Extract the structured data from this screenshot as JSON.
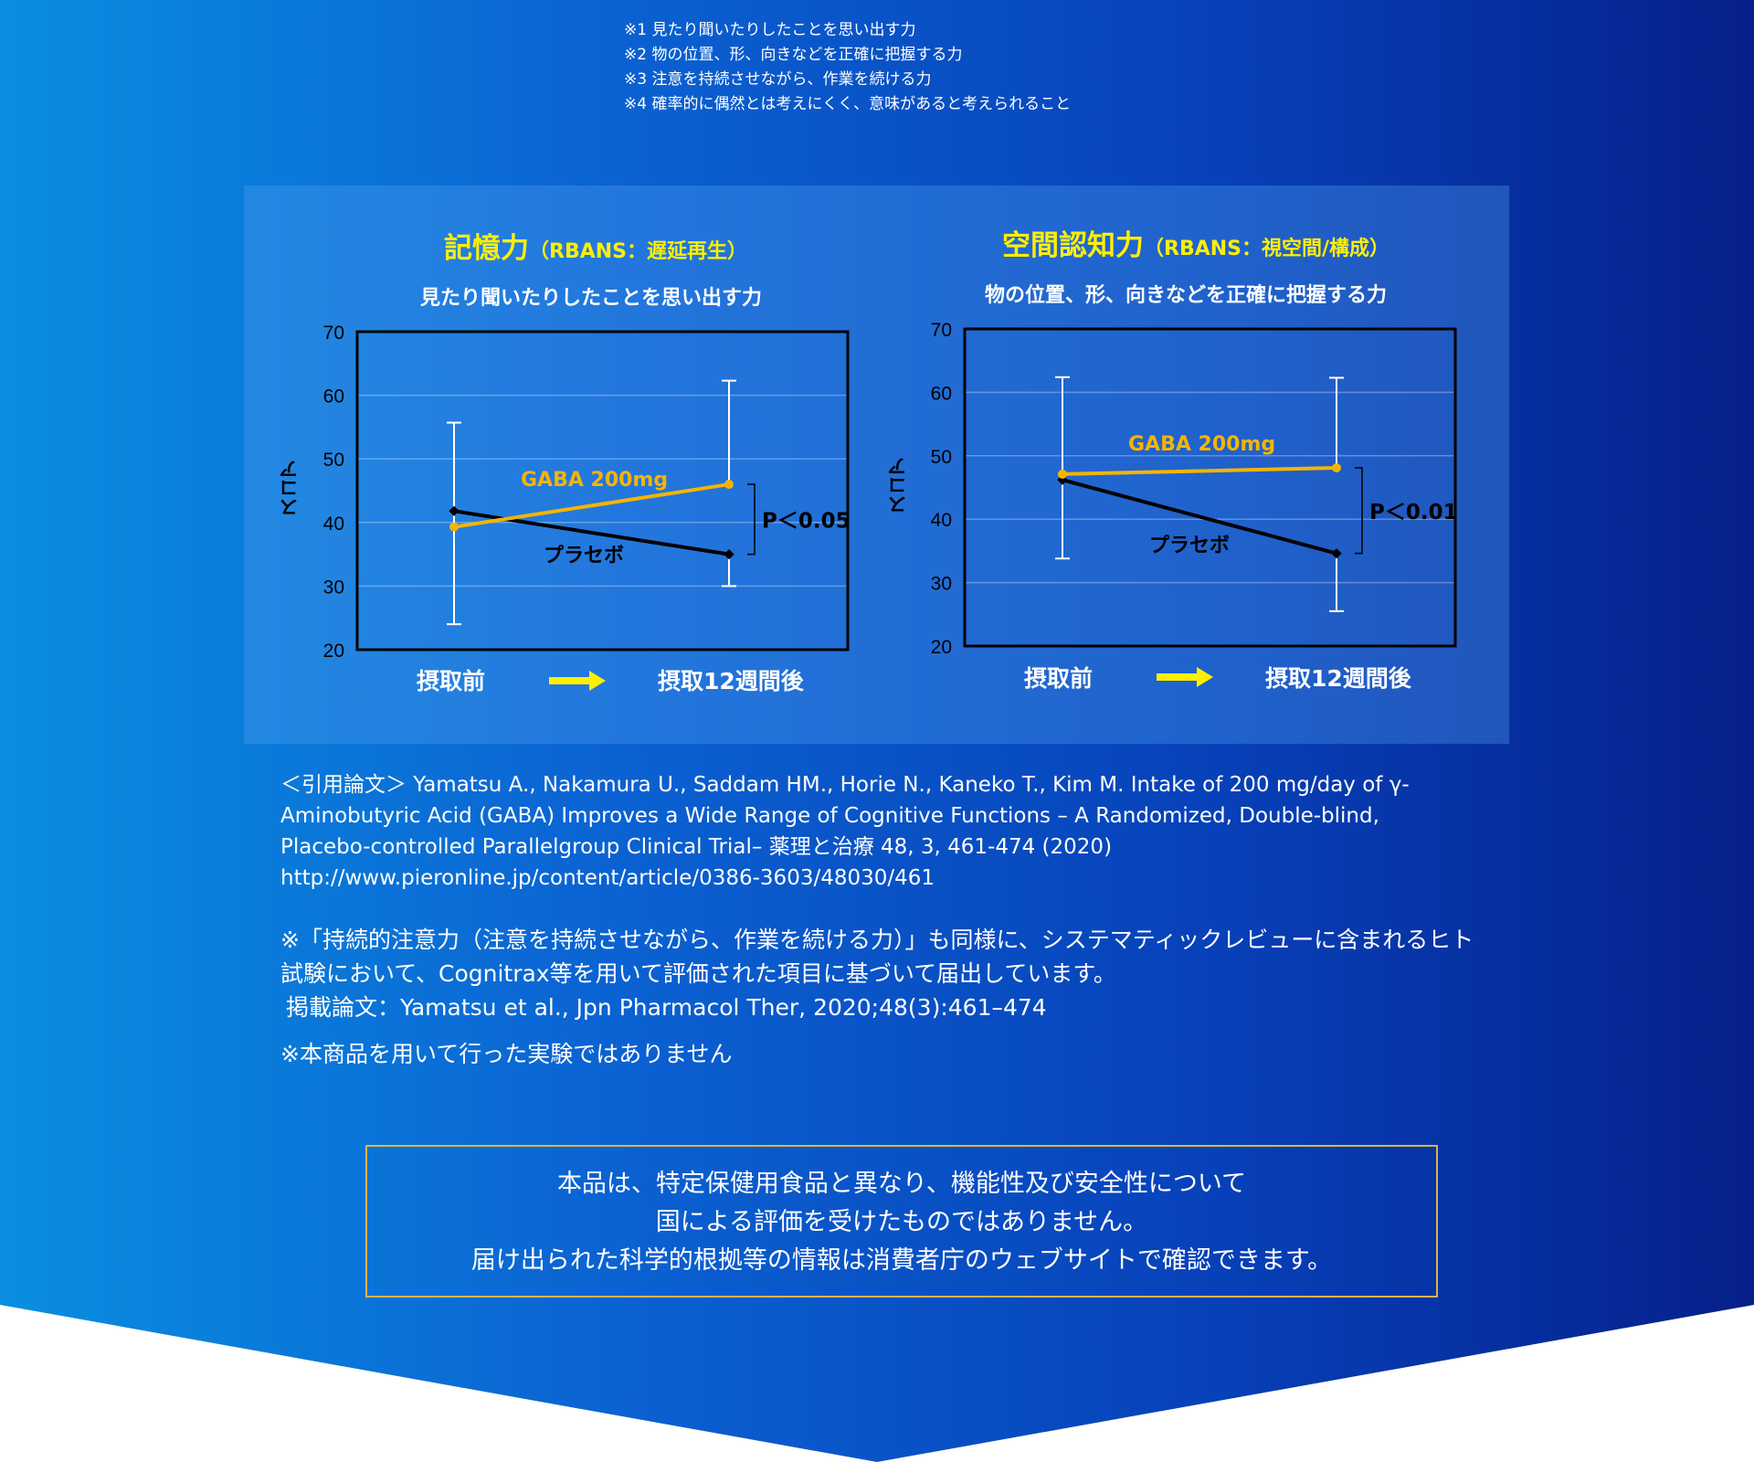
{
  "notes": [
    "※1 見たり聞いたりしたことを思い出す力",
    "※2 物の位置、形、向きなどを正確に把握する力",
    "※3 注意を持続させながら、作業を続ける力",
    "※4 確率的に偶然とは考えにくく、意味があると考えられること"
  ],
  "chart_data": [
    {
      "type": "line",
      "title": "記憶力",
      "title_sub": "（RBANS：遅延再生）",
      "subtitle": "見たり聞いたりしたことを思い出す力",
      "ylabel": "スコア",
      "ylim": [
        20,
        70
      ],
      "yticks": [
        "20",
        "30",
        "40",
        "50",
        "60",
        "70"
      ],
      "categories": [
        "摂取前",
        "摂取12週間後"
      ],
      "series": [
        {
          "name": "GABA 200mg",
          "color": "#f5b400",
          "values": [
            39.3,
            46.0
          ],
          "err_upper": [
            55.7,
            62.3
          ]
        },
        {
          "name": "プラセボ",
          "color": "#000000",
          "values": [
            41.8,
            35.0
          ],
          "err_lower": [
            24.0,
            30.0
          ]
        }
      ],
      "annotation": "P＜0.05",
      "grid": true
    },
    {
      "type": "line",
      "title": "空間認知力",
      "title_sub": "（RBANS：視空間/構成）",
      "subtitle": "物の位置、形、向きなどを正確に把握する力",
      "ylabel": "スコア",
      "ylim": [
        20,
        70
      ],
      "yticks": [
        "20",
        "30",
        "40",
        "50",
        "60",
        "70"
      ],
      "categories": [
        "摂取前",
        "摂取12週間後"
      ],
      "series": [
        {
          "name": "GABA 200mg",
          "color": "#f5b400",
          "values": [
            47.1,
            48.1
          ],
          "err_upper": [
            62.4,
            62.3
          ]
        },
        {
          "name": "プラセボ",
          "color": "#000000",
          "values": [
            46.2,
            34.6
          ],
          "err_lower": [
            33.8,
            25.5
          ]
        }
      ],
      "annotation": "P＜0.01",
      "grid": true
    }
  ],
  "citation": [
    "＜引用論文＞ Yamatsu A., Nakamura U., Saddam HM., Horie N., Kaneko T., Kim M. Intake of 200 mg/day of γ-Aminobutyric Acid (GABA) Improves a Wide Range of Cognitive Functions – A Randomized, Double-blind, Placebo-controlled Parallelgroup Clinical Trial– 薬理と治療 48, 3, 461-474 (2020)",
    "http://www.pieronline.jp/content/article/0386-3603/48030/461"
  ],
  "note2": "※「持続的注意力（注意を持続させながら、作業を続ける力）」も同様に、システマティックレビューに含まれるヒト試験において、Cognitrax等を用いて評価された項目に基づいて届出しています。",
  "note3": "掲載論文：Yamatsu et al., Jpn Pharmacol Ther, 2020;48(3):461–474",
  "note4": "※本商品を用いて行った実験ではありません",
  "disclaimer": [
    "本品は、特定保健用食品と異なり、機能性及び安全性について",
    "国による評価を受けたものではありません。",
    "届け出られた科学的根拠等の情報は消費者庁のウェブサイトで確認できます。"
  ]
}
